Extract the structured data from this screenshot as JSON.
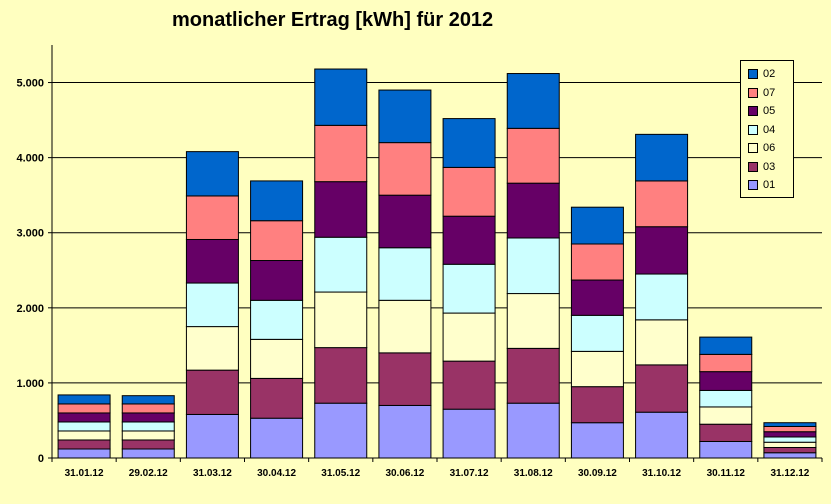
{
  "chart_data": {
    "type": "bar",
    "stacked": true,
    "title": "monatlicher Ertrag [kWh] für 2012",
    "xlabel": "",
    "ylabel": "",
    "ylim": [
      0,
      5500
    ],
    "yticks": [
      0,
      1000,
      2000,
      3000,
      4000,
      5000
    ],
    "ytick_labels": [
      "0",
      "1.000",
      "2.000",
      "3.000",
      "4.000",
      "5.000"
    ],
    "grid": true,
    "legend_position": "top-right",
    "categories": [
      "31.01.12",
      "29.02.12",
      "31.03.12",
      "30.04.12",
      "31.05.12",
      "30.06.12",
      "31.07.12",
      "31.08.12",
      "30.09.12",
      "31.10.12",
      "30.11.12",
      "31.12.12"
    ],
    "series": [
      {
        "name": "01",
        "color": "#9999ff",
        "values": [
          120,
          120,
          580,
          530,
          730,
          700,
          650,
          730,
          470,
          610,
          220,
          70
        ]
      },
      {
        "name": "03",
        "color": "#993366",
        "values": [
          120,
          120,
          590,
          530,
          740,
          700,
          640,
          730,
          480,
          630,
          230,
          70
        ]
      },
      {
        "name": "06",
        "color": "#ffffcc",
        "values": [
          120,
          120,
          580,
          520,
          740,
          700,
          640,
          730,
          470,
          600,
          230,
          70
        ]
      },
      {
        "name": "04",
        "color": "#ccffff",
        "values": [
          120,
          120,
          580,
          520,
          730,
          700,
          650,
          740,
          480,
          610,
          220,
          70
        ]
      },
      {
        "name": "05",
        "color": "#660066",
        "values": [
          120,
          120,
          580,
          530,
          740,
          700,
          640,
          730,
          470,
          630,
          250,
          70
        ]
      },
      {
        "name": "07",
        "color": "#ff8080",
        "values": [
          120,
          120,
          580,
          530,
          750,
          700,
          650,
          730,
          480,
          610,
          230,
          70
        ]
      },
      {
        "name": "02",
        "color": "#0066cc",
        "values": [
          120,
          110,
          590,
          530,
          750,
          700,
          650,
          730,
          490,
          620,
          230,
          50
        ]
      }
    ]
  }
}
